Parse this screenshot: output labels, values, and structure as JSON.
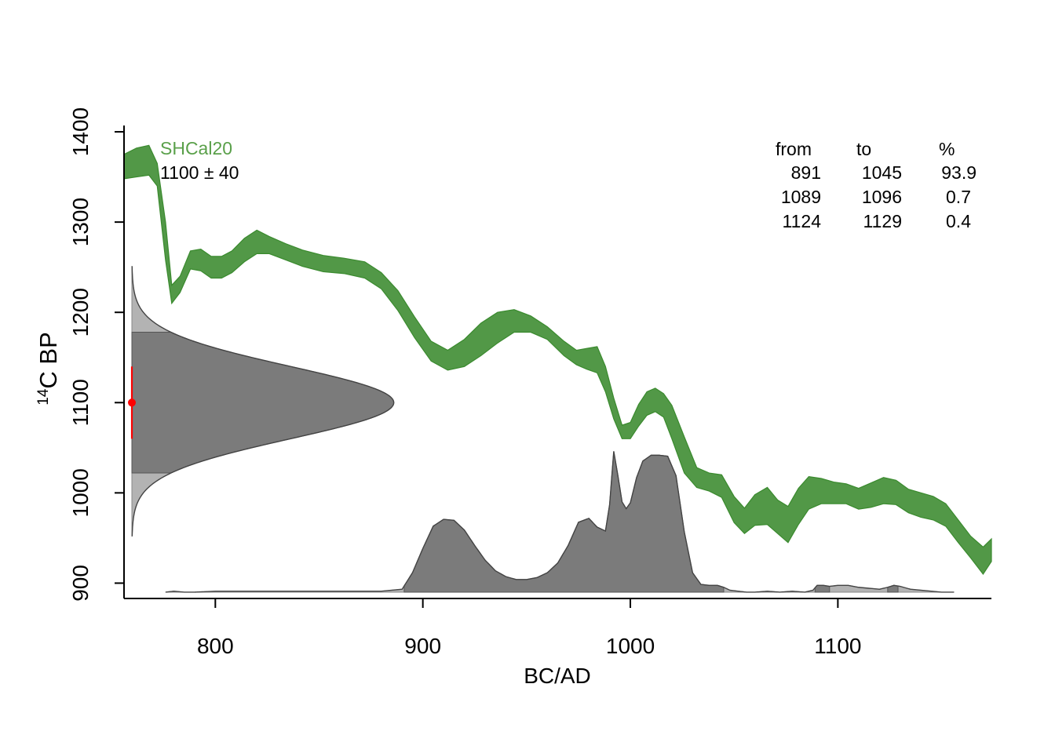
{
  "chart_data": {
    "type": "area",
    "xlabel": "BC/AD",
    "ylabel_sup": "14",
    "ylabel_main": "C BP",
    "xlim": [
      756,
      1174
    ],
    "ylim": [
      883,
      1407
    ],
    "xticks": [
      {
        "value": 800,
        "label": "800"
      },
      {
        "value": 900,
        "label": "900"
      },
      {
        "value": 1000,
        "label": "1000"
      },
      {
        "value": 1100,
        "label": "1100"
      }
    ],
    "yticks": [
      {
        "value": 900,
        "label": "900"
      },
      {
        "value": 1000,
        "label": "1000"
      },
      {
        "value": 1100,
        "label": "1100"
      },
      {
        "value": 1200,
        "label": "1200"
      },
      {
        "value": 1300,
        "label": "1300"
      },
      {
        "value": 1400,
        "label": "1400"
      }
    ],
    "calibration_curve": {
      "name": "SHCal20",
      "color": "#3a8a2e",
      "x": [
        756,
        762,
        768,
        772,
        776,
        779,
        783,
        788,
        793,
        798,
        803,
        808,
        814,
        820,
        826,
        834,
        842,
        852,
        862,
        872,
        880,
        888,
        896,
        904,
        912,
        920,
        928,
        936,
        944,
        952,
        960,
        968,
        974,
        979,
        984,
        988,
        992,
        996,
        1000,
        1004,
        1008,
        1012,
        1016,
        1020,
        1026,
        1032,
        1038,
        1044,
        1050,
        1055,
        1060,
        1066,
        1071,
        1076,
        1081,
        1086,
        1092,
        1098,
        1104,
        1110,
        1116,
        1122,
        1128,
        1134,
        1140,
        1146,
        1152,
        1158,
        1164,
        1170,
        1174
      ],
      "upper": [
        1375,
        1382,
        1385,
        1365,
        1300,
        1230,
        1240,
        1268,
        1270,
        1262,
        1262,
        1268,
        1282,
        1291,
        1284,
        1276,
        1269,
        1263,
        1260,
        1256,
        1244,
        1224,
        1195,
        1168,
        1158,
        1170,
        1188,
        1200,
        1203,
        1196,
        1184,
        1168,
        1158,
        1160,
        1162,
        1140,
        1105,
        1075,
        1078,
        1098,
        1112,
        1116,
        1110,
        1097,
        1062,
        1028,
        1022,
        1020,
        996,
        983,
        998,
        1006,
        992,
        985,
        1005,
        1018,
        1016,
        1012,
        1010,
        1005,
        1011,
        1017,
        1014,
        1004,
        1000,
        996,
        988,
        970,
        952,
        940,
        949
      ],
      "lower": [
        1348,
        1350,
        1352,
        1340,
        1258,
        1210,
        1222,
        1248,
        1246,
        1238,
        1238,
        1244,
        1256,
        1265,
        1265,
        1258,
        1251,
        1245,
        1243,
        1238,
        1226,
        1202,
        1172,
        1146,
        1136,
        1140,
        1152,
        1166,
        1178,
        1178,
        1170,
        1152,
        1142,
        1137,
        1133,
        1112,
        1082,
        1060,
        1060,
        1074,
        1086,
        1090,
        1084,
        1060,
        1022,
        1006,
        1002,
        995,
        967,
        955,
        964,
        965,
        955,
        945,
        965,
        982,
        988,
        988,
        988,
        982,
        984,
        988,
        987,
        978,
        973,
        970,
        963,
        945,
        928,
        910,
        924
      ]
    },
    "measurement": {
      "label": "1100 ± 40",
      "age": 1100,
      "error": 40,
      "point_color": "#ff0000"
    },
    "radiocarbon_density": {
      "peak_x": 886,
      "sigma": 40,
      "range_low": 952,
      "range_high": 1251,
      "hpd_low": 1022,
      "hpd_high": 1178,
      "color": "#7b7b7b",
      "tail_color": "#b3b3b3"
    },
    "calibrated_density": {
      "baseline_c14": 890,
      "peak_c14": 1046,
      "x": [
        776,
        780,
        785,
        790,
        800,
        820,
        850,
        880,
        890,
        895,
        900,
        905,
        910,
        915,
        920,
        925,
        930,
        935,
        940,
        945,
        950,
        955,
        960,
        965,
        970,
        975,
        980,
        984,
        988,
        990,
        992,
        994,
        996,
        998,
        1000,
        1003,
        1006,
        1010,
        1014,
        1018,
        1022,
        1026,
        1030,
        1034,
        1038,
        1042,
        1045,
        1048,
        1052,
        1056,
        1060,
        1066,
        1072,
        1078,
        1084,
        1088,
        1090,
        1093,
        1096,
        1100,
        1105,
        1110,
        1115,
        1120,
        1124,
        1127,
        1130,
        1135,
        1140,
        1145,
        1150,
        1156
      ],
      "density": [
        0,
        1,
        0,
        0,
        1,
        1,
        1,
        1,
        3,
        20,
        45,
        68,
        75,
        74,
        64,
        48,
        33,
        22,
        16,
        13,
        13,
        15,
        20,
        30,
        48,
        72,
        76,
        67,
        63,
        90,
        145,
        120,
        93,
        86,
        92,
        118,
        135,
        141,
        141,
        140,
        120,
        62,
        20,
        8,
        7,
        7,
        5,
        2,
        1,
        0,
        0,
        1,
        0,
        1,
        0,
        2,
        7,
        7,
        6,
        7,
        7,
        5,
        4,
        3,
        5,
        7,
        6,
        3,
        2,
        1,
        0,
        0
      ],
      "hpd_ranges": [
        [
          891,
          1045
        ],
        [
          1089,
          1096
        ],
        [
          1124,
          1129
        ]
      ],
      "color": "#7b7b7b",
      "tail_color": "#b3b3b3"
    },
    "ranges_table": {
      "headers": [
        "from",
        "to",
        "%"
      ],
      "rows": [
        [
          "891",
          "1045",
          "93.9"
        ],
        [
          "1089",
          "1096",
          "0.7"
        ],
        [
          "1124",
          "1129",
          "0.4"
        ]
      ]
    }
  }
}
